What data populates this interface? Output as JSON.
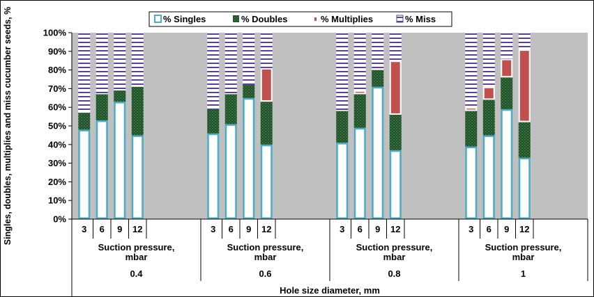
{
  "chart_data": {
    "type": "bar",
    "stacked": true,
    "ylabel": "Singles, doubles, multiplies and miss cucumber seeds, %",
    "xlabel": "Hole size diameter, mm",
    "ylim": [
      0,
      100
    ],
    "yticks": [
      "0%",
      "10%",
      "20%",
      "30%",
      "40%",
      "50%",
      "60%",
      "70%",
      "80%",
      "90%",
      "100%"
    ],
    "grid": false,
    "legend_position": "top",
    "subgroup_label": "Suction pressure, mbar",
    "groups": [
      {
        "label": "0.4",
        "categories": [
          "3",
          "6",
          "9",
          "12"
        ]
      },
      {
        "label": "0.6",
        "categories": [
          "3",
          "6",
          "9",
          "12"
        ]
      },
      {
        "label": "0.8",
        "categories": [
          "3",
          "6",
          "9",
          "12"
        ]
      },
      {
        "label": "1",
        "categories": [
          "3",
          "6",
          "9",
          "12"
        ]
      }
    ],
    "series": [
      {
        "name": "% Singles",
        "color": "#ffffff",
        "border": "#4bacc6",
        "pattern": "solid",
        "values": [
          48,
          53,
          63,
          45,
          46,
          51,
          65,
          40,
          41,
          49,
          71,
          37,
          39,
          45,
          59,
          33
        ]
      },
      {
        "name": "% Doubles",
        "color": "#1e4d2b",
        "pattern": "dotted",
        "values": [
          9,
          14,
          6,
          26,
          13,
          16,
          7,
          23,
          17,
          18,
          9,
          19,
          19,
          19,
          17,
          19
        ]
      },
      {
        "name": "% Multiplies",
        "color": "#c0504d",
        "pattern": "solid",
        "values": [
          0,
          0,
          0,
          0,
          0,
          0,
          0,
          18,
          0,
          2,
          0,
          29,
          2,
          7,
          10,
          39
        ]
      },
      {
        "name": "% Miss",
        "color": "#ffffff",
        "stripe": "#5a3fa0",
        "pattern": "striped",
        "values": [
          43,
          33,
          31,
          29,
          41,
          33,
          28,
          19,
          42,
          31,
          20,
          15,
          40,
          29,
          14,
          9
        ]
      }
    ]
  }
}
